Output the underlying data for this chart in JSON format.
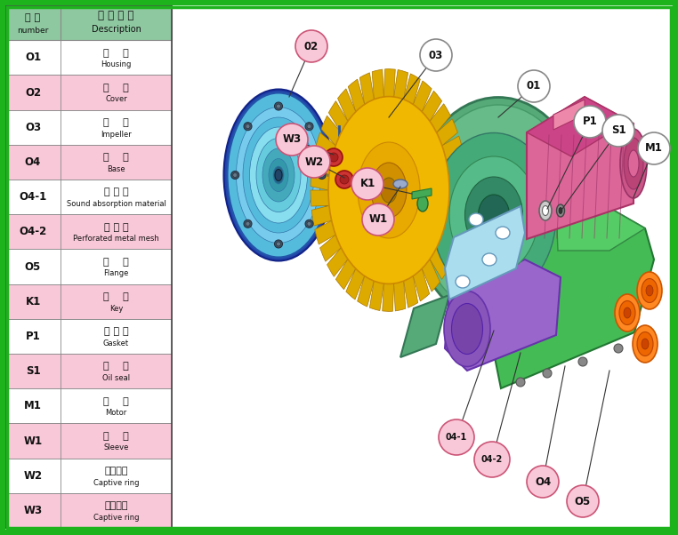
{
  "table_rows": [
    [
      "O1",
      "機    殼",
      "Housing",
      false
    ],
    [
      "O2",
      "機    蓋",
      "Cover",
      true
    ],
    [
      "O3",
      "葉    輪",
      "Impeller",
      false
    ],
    [
      "O4",
      "基    座",
      "Base",
      true
    ],
    [
      "O4-1",
      "消 音 棉",
      "Sound absorption material",
      false
    ],
    [
      "O4-2",
      "沖 孔 網",
      "Perforated metal mesh",
      true
    ],
    [
      "O5",
      "法    蘭",
      "Flange",
      false
    ],
    [
      "K1",
      "滑    鍵",
      "Key",
      true
    ],
    [
      "P1",
      "密 合 墊",
      "Gasket",
      false
    ],
    [
      "S1",
      "油    封",
      "Oil seal",
      true
    ],
    [
      "M1",
      "馬    達",
      "Motor",
      false
    ],
    [
      "W1",
      "套    筒",
      "Sleeve",
      true
    ],
    [
      "W2",
      "防鬆墊片",
      "Captive ring",
      false
    ],
    [
      "W3",
      "防鬆墊片",
      "Captive ring",
      true
    ]
  ],
  "header_bg": "#8ec8a0",
  "row_bg_white": "#ffffff",
  "row_bg_pink": "#f9c8d8",
  "table_border": "#888888",
  "green_border": "#22aa22"
}
